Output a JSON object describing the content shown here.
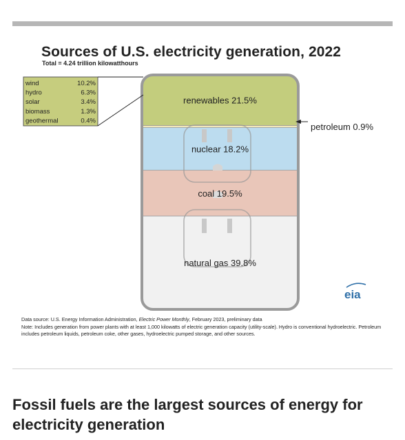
{
  "chart_data": {
    "type": "stacked-bar",
    "title": "Sources of U.S. electricity generation, 2022",
    "subtitle": "Total = 4.24 trillion kilowatthours",
    "categories": [
      "renewables",
      "petroleum",
      "nuclear",
      "coal",
      "natural gas"
    ],
    "values": [
      21.5,
      0.9,
      18.2,
      19.5,
      39.8
    ],
    "segment_labels": [
      "renewables 21.5%",
      "petroleum 0.9%",
      "nuclear 18.2%",
      "coal 19.5%",
      "natural gas 39.8%"
    ],
    "colors": [
      "#c3cd7d",
      "#f2e7ba",
      "#bcdcef",
      "#e9c6b9",
      "#f1f1f1"
    ],
    "renewables_breakdown": [
      {
        "name": "wind",
        "value": "10.2%"
      },
      {
        "name": "hydro",
        "value": "6.3%"
      },
      {
        "name": "solar",
        "value": "3.4%"
      },
      {
        "name": "biomass",
        "value": "1.3%"
      },
      {
        "name": "geothermal",
        "value": "0.4%"
      }
    ],
    "breakdown_box_color": "#c6cd7e"
  },
  "logo_text": "eia",
  "source": {
    "prefix": "Data source: U.S. Energy Information Administration, ",
    "publication": "Electric Power Monthly",
    "suffix": ", February 2023, preliminary data",
    "note": "Note: Includes generation from power plants with at least 1,000 kilowatts of electric generation capacity (utility-scale). Hydro is conventional hydroelectric. Petroleum includes petroleum liquids, petroleum coke, other gases, hydroelectric pumped storage, and other sources."
  },
  "article": {
    "heading": "Fossil fuels are the largest sources of energy for electricity generation"
  }
}
